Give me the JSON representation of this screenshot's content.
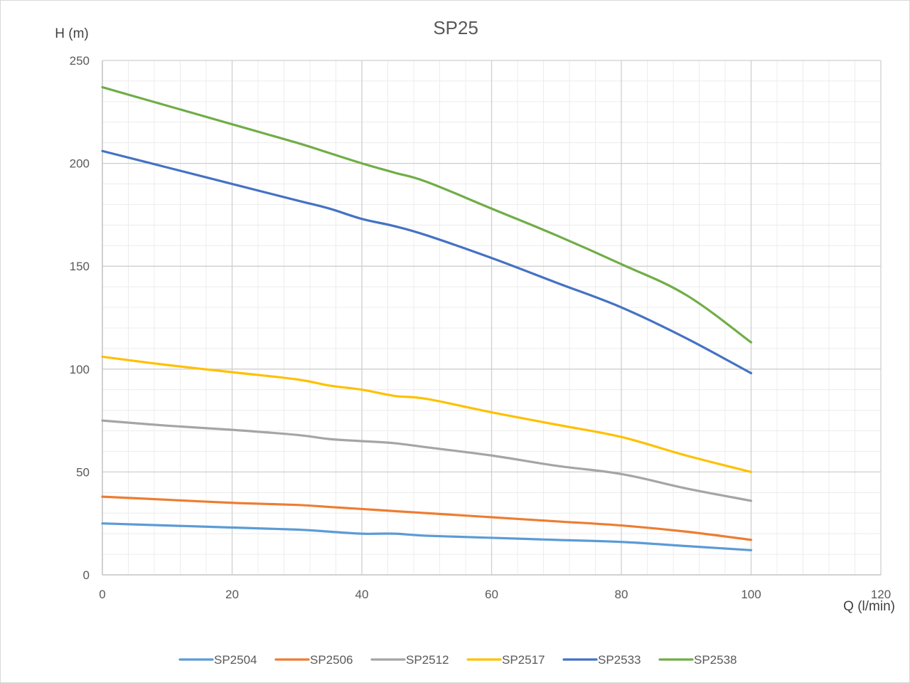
{
  "chart_data": {
    "type": "line",
    "title": "SP25",
    "xlabel": "Q (l/min)",
    "ylabel": "H (m)",
    "xlim": [
      0,
      120
    ],
    "ylim": [
      0,
      250
    ],
    "x_major_ticks": [
      0,
      20,
      40,
      60,
      80,
      100,
      120
    ],
    "y_major_ticks": [
      0,
      50,
      100,
      150,
      200,
      250
    ],
    "x_minor_step": 4,
    "y_minor_step": 10,
    "grid": true,
    "legend_position": "bottom",
    "x": [
      0,
      10,
      20,
      30,
      35,
      40,
      45,
      50,
      60,
      70,
      80,
      90,
      100
    ],
    "series": [
      {
        "name": "SP2504",
        "color": "#5B9BD5",
        "values": [
          25,
          24,
          23,
          22,
          21,
          20,
          20,
          19,
          18,
          17,
          16,
          14,
          12
        ]
      },
      {
        "name": "SP2506",
        "color": "#ED7D31",
        "values": [
          38,
          36.5,
          35,
          34,
          33,
          32,
          31,
          30,
          28,
          26,
          24,
          21,
          17
        ]
      },
      {
        "name": "SP2512",
        "color": "#A5A5A5",
        "values": [
          75,
          72.5,
          70.5,
          68,
          66,
          65,
          64,
          62,
          58,
          53,
          49,
          42,
          36
        ]
      },
      {
        "name": "SP2517",
        "color": "#FFC000",
        "values": [
          106,
          102,
          98.5,
          95,
          92,
          90,
          87,
          85.5,
          79,
          73,
          67,
          58,
          50
        ]
      },
      {
        "name": "SP2533",
        "color": "#4472C4",
        "values": [
          206,
          198,
          190,
          182,
          178,
          173,
          169.5,
          165,
          154,
          142,
          130,
          115,
          98
        ]
      },
      {
        "name": "SP2538",
        "color": "#70AD47",
        "values": [
          237,
          228,
          219,
          210,
          205,
          200,
          195.5,
          191,
          178,
          165,
          151,
          136,
          113
        ]
      }
    ]
  }
}
